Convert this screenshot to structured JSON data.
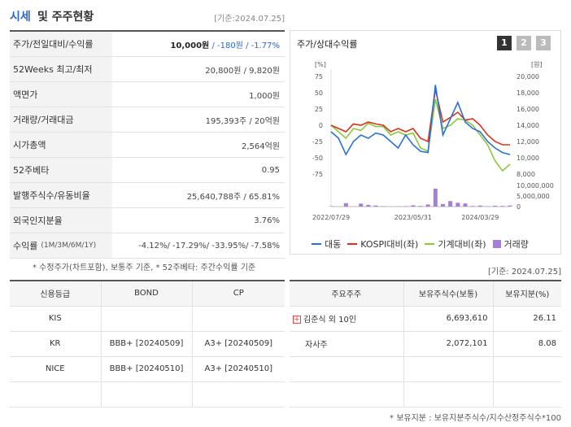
{
  "header": {
    "title_accent": "시세",
    "title_rest": "및 주주현황",
    "date": "[기준:2024.07.25]"
  },
  "quote_rows": [
    {
      "label": "주가/전일대비/수익률",
      "sub": "",
      "v1": "10,000원",
      "v2": " / -180원 / -1.77%"
    },
    {
      "label": "52Weeks 최고/최저",
      "sub": "",
      "v1": "",
      "v2": "20,800원 / 9,820원"
    },
    {
      "label": "액면가",
      "sub": "",
      "v1": "",
      "v2": "1,000원"
    },
    {
      "label": "거래량/거래대금",
      "sub": "",
      "v1": "",
      "v2": "195,393주 / 20억원"
    },
    {
      "label": "시가총액",
      "sub": "",
      "v1": "",
      "v2": "2,564억원"
    },
    {
      "label": "52주베타",
      "sub": "",
      "v1": "",
      "v2": "0.95"
    },
    {
      "label": "발행주식수/유동비율",
      "sub": "",
      "v1": "",
      "v2": "25,640,788주 / 65.81%"
    },
    {
      "label": "외국인지분율",
      "sub": "",
      "v1": "",
      "v2": "3.76%"
    },
    {
      "label": "수익률",
      "sub": "(1M/3M/6M/1Y)",
      "v1": "",
      "v2": "-4.12%/ -17.29%/ -33.95%/ -7.58%"
    }
  ],
  "note_quote": "* 수정주가(차트포함), 보통주 기준, * 52주베타: 주간수익률 기준",
  "chart": {
    "title": "주가/상대수익률",
    "pages": [
      "1",
      "2",
      "3"
    ],
    "left_unit": "[%]",
    "right_unit": "[원]",
    "left_ticks": [
      "75",
      "50",
      "25",
      "0",
      "-25",
      "-50",
      "-75"
    ],
    "right_ticks": [
      "20,000",
      "18,000",
      "16,000",
      "14,000",
      "12,000",
      "10,000",
      "8,000"
    ],
    "vol_ticks": [
      "10,000,000",
      "5,000,000",
      "0"
    ],
    "x_ticks": [
      "2022/07/29",
      "2023/05/31",
      "2024/03/29"
    ],
    "colors": {
      "daedong": "#2b6fd6",
      "kospi": "#d6341f",
      "machine": "#8cc63f",
      "volume": "#a67fd4"
    }
  },
  "legend": {
    "daedong": "대동",
    "kospi": "KOSPI대비(좌)",
    "machine": "기계대비(좌)",
    "volume": "거래량"
  },
  "chart_data": {
    "type": "line",
    "x": [
      "2022/07",
      "2022/08",
      "2022/09",
      "2022/10",
      "2022/11",
      "2022/12",
      "2023/01",
      "2023/02",
      "2023/03",
      "2023/04",
      "2023/05",
      "2023/06",
      "2023/07",
      "2023/08",
      "2023/09",
      "2023/10",
      "2023/11",
      "2023/12",
      "2024/01",
      "2024/02",
      "2024/03",
      "2024/04",
      "2024/05",
      "2024/06",
      "2024/07"
    ],
    "series": [
      {
        "name": "대동",
        "axis": "left",
        "values": [
          -10,
          -20,
          -45,
          -25,
          -15,
          -20,
          -12,
          -15,
          -25,
          -35,
          -15,
          -30,
          -40,
          -42,
          62,
          -15,
          10,
          35,
          5,
          -5,
          -10,
          -25,
          -35,
          -42,
          -45
        ]
      },
      {
        "name": "KOSPI대비(좌)",
        "axis": "left",
        "values": [
          0,
          -5,
          -10,
          2,
          0,
          5,
          2,
          0,
          -10,
          -5,
          -10,
          -5,
          -20,
          -25,
          55,
          5,
          12,
          20,
          8,
          10,
          0,
          -15,
          -25,
          -30,
          -30
        ]
      },
      {
        "name": "기계대비(좌)",
        "axis": "left",
        "values": [
          0,
          -10,
          -20,
          -5,
          -8,
          3,
          -2,
          -2,
          -15,
          -10,
          -15,
          -12,
          -35,
          -40,
          40,
          -5,
          0,
          10,
          8,
          0,
          -15,
          -30,
          -55,
          -70,
          -60
        ]
      }
    ],
    "volume": [
      200000,
      0,
      1600000,
      0,
      1400000,
      800000,
      500000,
      200000,
      0,
      100000,
      200000,
      600000,
      300000,
      1000000,
      8500000,
      1200000,
      2600000,
      1800000,
      1500000,
      300000,
      500000,
      200000,
      400000,
      300000,
      500000
    ],
    "ylim_left": [
      -75,
      75
    ],
    "ylim_right": [
      8000,
      20000
    ],
    "ylim_volume": [
      0,
      10000000
    ]
  },
  "note_chart": "[기준: 2024.07.25]",
  "credit": {
    "headers": [
      "신용등급",
      "BOND",
      "CP"
    ],
    "rows": [
      [
        "KIS",
        "",
        ""
      ],
      [
        "KR",
        "BBB+ [20240509]",
        "A3+ [20240509]"
      ],
      [
        "NICE",
        "BBB+ [20240510]",
        "A3+ [20240510]"
      ],
      [
        "",
        "",
        ""
      ]
    ]
  },
  "holders": {
    "headers": [
      "주요주주",
      "보유주식수(보통)",
      "보유지분(%)"
    ],
    "rows": [
      {
        "name": "김준식 외 10인",
        "shares": "6,693,610",
        "pct": "26.11",
        "expand": "+"
      },
      {
        "name": "자사주",
        "shares": "2,072,101",
        "pct": "8.08",
        "expand": ""
      },
      {
        "name": "",
        "shares": "",
        "pct": "",
        "expand": ""
      },
      {
        "name": "",
        "shares": "",
        "pct": "",
        "expand": ""
      }
    ]
  },
  "note_holders": "* 보유지분 : 보유지분주식수/지수산정주식수*100"
}
